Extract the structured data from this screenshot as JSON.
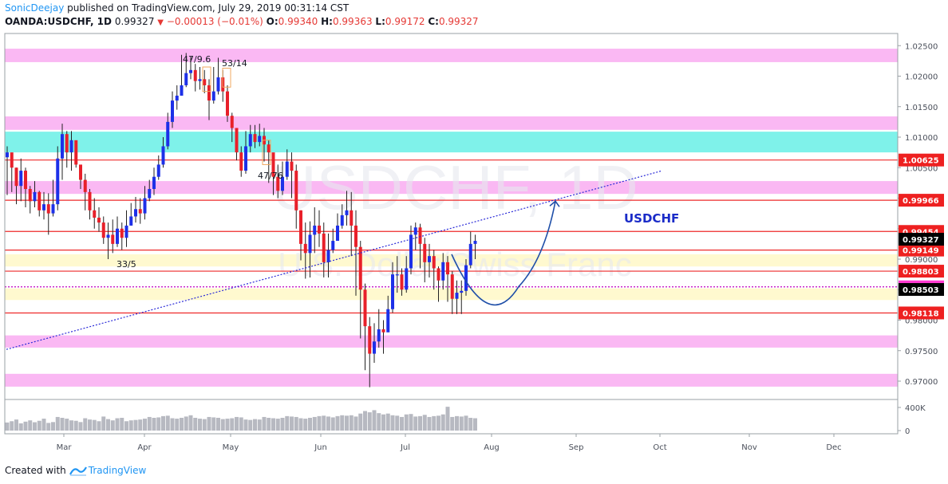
{
  "header": {
    "author": "SonicDeejay",
    "published_text": "published on TradingView.com, July 29, 2019 00:31:14 CST",
    "symbol": "OANDA:USDCHF, 1D",
    "last_price": "0.99327",
    "change": "−0.00013 (−0.01%)",
    "open_label": "O:",
    "open": "0.99340",
    "high_label": "H:",
    "high": "0.99363",
    "low_label": "L:",
    "low": "0.99172",
    "close_label": "C:",
    "close": "0.99327"
  },
  "watermark": {
    "symbol": "USDCHF, 1D",
    "description": "U.S. Dollar/Swiss Franc"
  },
  "footer": {
    "created_with": "Created with",
    "brand": "TradingView"
  },
  "chart_data": {
    "type": "candlestick",
    "title": "USDCHF",
    "ylim": [
      0.968,
      1.0275
    ],
    "x_month_ticks": [
      "Mar",
      "Apr",
      "May",
      "Jun",
      "Jul",
      "Aug",
      "Sep",
      "Oct",
      "Nov",
      "Dec"
    ],
    "y_ticks": [
      "1.02500",
      "1.02000",
      "1.01500",
      "1.01000",
      "1.00500",
      "1.00000",
      "0.99500",
      "0.99000",
      "0.98500",
      "0.98000",
      "0.97500",
      "0.97000"
    ],
    "y_tick_values": [
      1.025,
      1.02,
      1.015,
      1.01,
      1.005,
      1.0,
      0.995,
      0.99,
      0.985,
      0.98,
      0.975,
      0.97
    ],
    "volume_tick_labels": [
      "400K",
      "0"
    ],
    "price_levels": [
      {
        "value": 1.00625,
        "label": "1.00625",
        "kind": "resistance"
      },
      {
        "value": 0.99966,
        "label": "0.99966",
        "kind": "resistance"
      },
      {
        "value": 0.99454,
        "label": "0.99454",
        "kind": "resistance"
      },
      {
        "value": 0.99149,
        "label": "0.99149",
        "kind": "resistance"
      },
      {
        "value": 0.98803,
        "label": "0.98803",
        "kind": "resistance"
      },
      {
        "value": 0.98546,
        "label": "0.98546",
        "kind": "dotted"
      },
      {
        "value": 0.98118,
        "label": "0.98118",
        "kind": "support"
      }
    ],
    "current_price": {
      "value": 0.99327,
      "label": "0.99327"
    },
    "cursor_price": {
      "value": 0.98503,
      "label": "0.98503"
    },
    "zones": [
      {
        "from": 1.0223,
        "to": 1.0245,
        "color": "#fab8f3"
      },
      {
        "from": 1.0112,
        "to": 1.0134,
        "color": "#fab8f3"
      },
      {
        "from": 1.0075,
        "to": 1.0109,
        "color": "#7ff2ea"
      },
      {
        "from": 1.0007,
        "to": 1.0028,
        "color": "#fab8f3"
      },
      {
        "from": 0.9888,
        "to": 0.9908,
        "color": "#fff9cf"
      },
      {
        "from": 0.9833,
        "to": 0.9852,
        "color": "#fff9cf"
      },
      {
        "from": 0.9755,
        "to": 0.9775,
        "color": "#fab8f3"
      },
      {
        "from": 0.9691,
        "to": 0.9712,
        "color": "#fab8f3"
      }
    ],
    "annotations": [
      {
        "text": "47/9.6",
        "near": 1.0233
      },
      {
        "text": "53/14",
        "near": 1.023
      },
      {
        "text": "47/76",
        "near": 1.004
      },
      {
        "text": "33/5",
        "near": 0.9902
      }
    ],
    "closes": [
      1.0075,
      1.005,
      1.002,
      1.0045,
      1.0015,
      0.9995,
      1.001,
      0.998,
      0.999,
      0.9975,
      0.999,
      1.0065,
      1.0105,
      1.0075,
      1.0095,
      1.0055,
      1.003,
      1.001,
      0.998,
      0.9968,
      0.996,
      0.9935,
      0.994,
      0.9925,
      0.995,
      0.9935,
      0.9955,
      0.997,
      0.9982,
      0.9975,
      1.0,
      1.0015,
      1.0035,
      1.0055,
      1.0085,
      1.0125,
      1.016,
      1.0168,
      1.0185,
      1.0205,
      1.021,
      1.0192,
      1.0195,
      1.0185,
      1.016,
      1.0175,
      1.0198,
      1.0175,
      1.0135,
      1.0115,
      1.0075,
      1.0045,
      1.0085,
      1.0105,
      1.0092,
      1.0102,
      1.0088,
      1.0075,
      1.0035,
      1.0012,
      1.0035,
      1.006,
      1.0045,
      0.998,
      0.9925,
      0.991,
      0.994,
      0.9955,
      0.9942,
      0.9895,
      0.9915,
      0.993,
      0.9955,
      0.9972,
      0.998,
      0.9955,
      0.992,
      0.985,
      0.979,
      0.9745,
      0.9765,
      0.9785,
      0.978,
      0.9818,
      0.9875,
      0.9875,
      0.985,
      0.9885,
      0.994,
      0.9952,
      0.9925,
      0.9895,
      0.9905,
      0.9885,
      0.9865,
      0.9895,
      0.9875,
      0.9835,
      0.9845,
      0.9848,
      0.989,
      0.9925,
      0.993
    ],
    "highs": [
      1.0085,
      1.006,
      1.005,
      1.0065,
      1.005,
      1.002,
      1.0028,
      1.0012,
      1.001,
      1.0008,
      1.003,
      1.0085,
      1.0122,
      1.011,
      1.011,
      1.008,
      1.005,
      1.004,
      1.0015,
      1.0,
      0.9985,
      0.997,
      0.996,
      0.9965,
      0.997,
      0.996,
      0.998,
      0.9992,
      1.0002,
      1.0,
      1.002,
      1.003,
      1.005,
      1.007,
      1.01,
      1.014,
      1.0175,
      1.0185,
      1.0235,
      1.0238,
      1.0232,
      1.022,
      1.0215,
      1.021,
      1.0195,
      1.0215,
      1.023,
      1.021,
      1.0185,
      1.014,
      1.0115,
      1.0085,
      1.011,
      1.012,
      1.012,
      1.0122,
      1.0115,
      1.0095,
      1.007,
      1.0055,
      1.006,
      1.008,
      1.0075,
      1.0055,
      0.998,
      0.996,
      0.9962,
      0.9985,
      0.998,
      0.996,
      0.9942,
      0.995,
      0.9975,
      0.999,
      1.0012,
      1.001,
      0.998,
      0.993,
      0.986,
      0.9805,
      0.9795,
      0.9818,
      0.98,
      0.984,
      0.9895,
      0.9905,
      0.9885,
      0.9905,
      0.9955,
      0.996,
      0.9958,
      0.9935,
      0.9925,
      0.9915,
      0.9888,
      0.991,
      0.9905,
      0.988,
      0.9865,
      0.9865,
      0.99,
      0.9945,
      0.994
    ],
    "lows": [
      1.0005,
      1.001,
      0.999,
      0.9995,
      0.9985,
      0.9975,
      0.9985,
      0.997,
      0.9965,
      0.994,
      0.997,
      0.998,
      1.003,
      1.005,
      1.0045,
      1.005,
      1.0015,
      0.998,
      0.9965,
      0.995,
      0.9945,
      0.9925,
      0.99,
      0.991,
      0.992,
      0.9915,
      0.992,
      0.9955,
      0.996,
      0.9958,
      0.9965,
      0.9995,
      1.0005,
      1.003,
      1.005,
      1.008,
      1.0115,
      1.0145,
      1.0168,
      1.0182,
      1.0195,
      1.0175,
      1.0178,
      1.0172,
      1.0128,
      1.0155,
      1.017,
      1.0158,
      1.0125,
      1.0092,
      1.0062,
      1.0035,
      1.004,
      1.0075,
      1.0082,
      1.0085,
      1.006,
      1.0025,
      1.0005,
      1.0,
      1.0005,
      1.003,
      1.0,
      0.995,
      0.9898,
      0.9868,
      0.987,
      0.991,
      0.992,
      0.987,
      0.987,
      0.991,
      0.9935,
      0.995,
      0.9955,
      0.9905,
      0.984,
      0.977,
      0.9718,
      0.969,
      0.973,
      0.9755,
      0.9745,
      0.9785,
      0.9812,
      0.9845,
      0.984,
      0.9845,
      0.9875,
      0.9915,
      0.9885,
      0.9862,
      0.987,
      0.985,
      0.983,
      0.985,
      0.983,
      0.981,
      0.981,
      0.981,
      0.984,
      0.9885,
      0.99
    ],
    "volumes": [
      95,
      110,
      130,
      85,
      105,
      120,
      98,
      115,
      140,
      90,
      100,
      160,
      150,
      140,
      120,
      115,
      100,
      145,
      130,
      125,
      110,
      165,
      135,
      120,
      145,
      150,
      110,
      120,
      125,
      130,
      140,
      160,
      150,
      155,
      170,
      175,
      145,
      140,
      150,
      165,
      180,
      150,
      140,
      135,
      160,
      155,
      150,
      135,
      140,
      145,
      160,
      155,
      130,
      125,
      135,
      130,
      160,
      150,
      145,
      140,
      150,
      170,
      165,
      160,
      145,
      140,
      150,
      160,
      170,
      175,
      165,
      155,
      170,
      180,
      175,
      180,
      165,
      200,
      230,
      215,
      240,
      205,
      190,
      200,
      180,
      175,
      160,
      190,
      195,
      165,
      170,
      185,
      160,
      170,
      175,
      190,
      280,
      160,
      170,
      165,
      175,
      150,
      145
    ]
  }
}
